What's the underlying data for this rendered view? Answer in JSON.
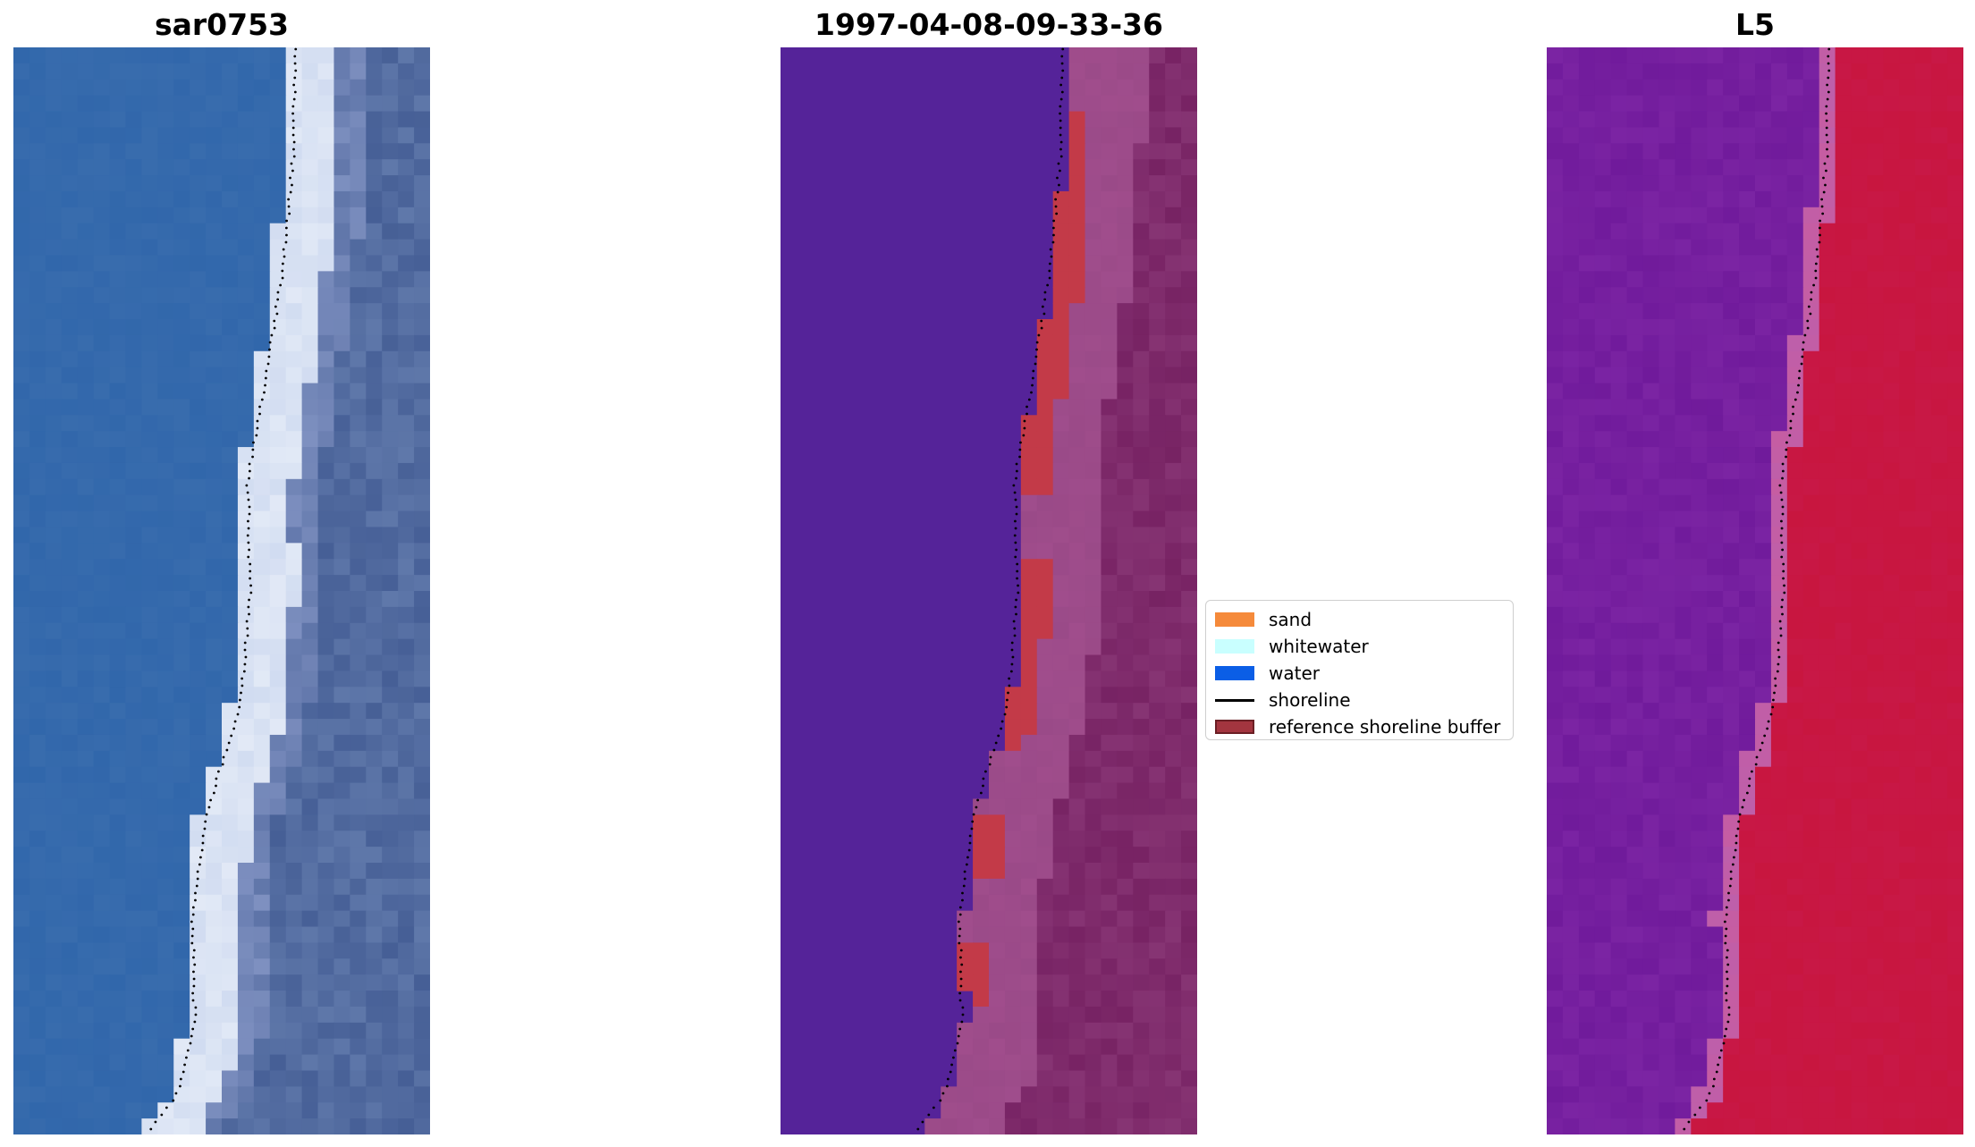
{
  "panels": [
    {
      "title": "sar0753"
    },
    {
      "title": "1997-04-08-09-33-36"
    },
    {
      "title": "L5"
    }
  ],
  "legend": {
    "items": [
      {
        "label": "sand",
        "color": "#f58a3b",
        "kind": "patch"
      },
      {
        "label": "whitewater",
        "color": "#c9ffff",
        "kind": "patch"
      },
      {
        "label": "water",
        "color": "#0b5ee6",
        "kind": "patch"
      },
      {
        "label": "shoreline",
        "color": "#000000",
        "kind": "line"
      },
      {
        "label": "reference shoreline buffer",
        "color": "#a3353f",
        "kind": "patch",
        "edge": "#6b1f25"
      }
    ]
  },
  "colors": {
    "rgb_water": "#3b6eae",
    "rgb_whitewater": "#e8eef8",
    "class_water": "#552399",
    "class_buffer": "#c33a48",
    "class_land": "#9a4a88",
    "ndwi_water": "#7b24a3",
    "ndwi_land": "#c8163f"
  }
}
